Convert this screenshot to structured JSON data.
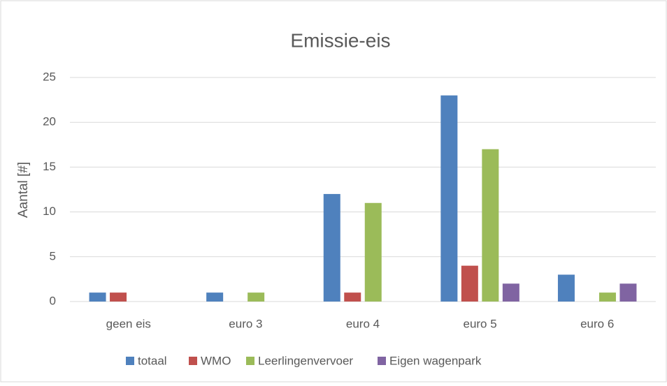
{
  "chart_data": {
    "type": "bar",
    "title": "Emissie-eis",
    "y_label": "Aantal [#]",
    "categories": [
      "geen eis",
      "euro 3",
      "euro 4",
      "euro 5",
      "euro 6"
    ],
    "series": [
      {
        "name": "totaal",
        "color": "#4f81bd",
        "values": [
          1,
          1,
          12,
          23,
          3
        ]
      },
      {
        "name": "WMO",
        "color": "#c0504d",
        "values": [
          1,
          0,
          1,
          4,
          0
        ]
      },
      {
        "name": "Leerlingenvervoer",
        "color": "#9bbb59",
        "values": [
          0,
          1,
          11,
          17,
          1
        ]
      },
      {
        "name": "Eigen wagenpark",
        "color": "#8064a2",
        "values": [
          0,
          0,
          0,
          2,
          2
        ]
      }
    ],
    "ylim": [
      0,
      25
    ],
    "yticks": [
      0,
      5,
      10,
      15,
      20,
      25
    ],
    "grid": true,
    "legend": "bottom"
  }
}
